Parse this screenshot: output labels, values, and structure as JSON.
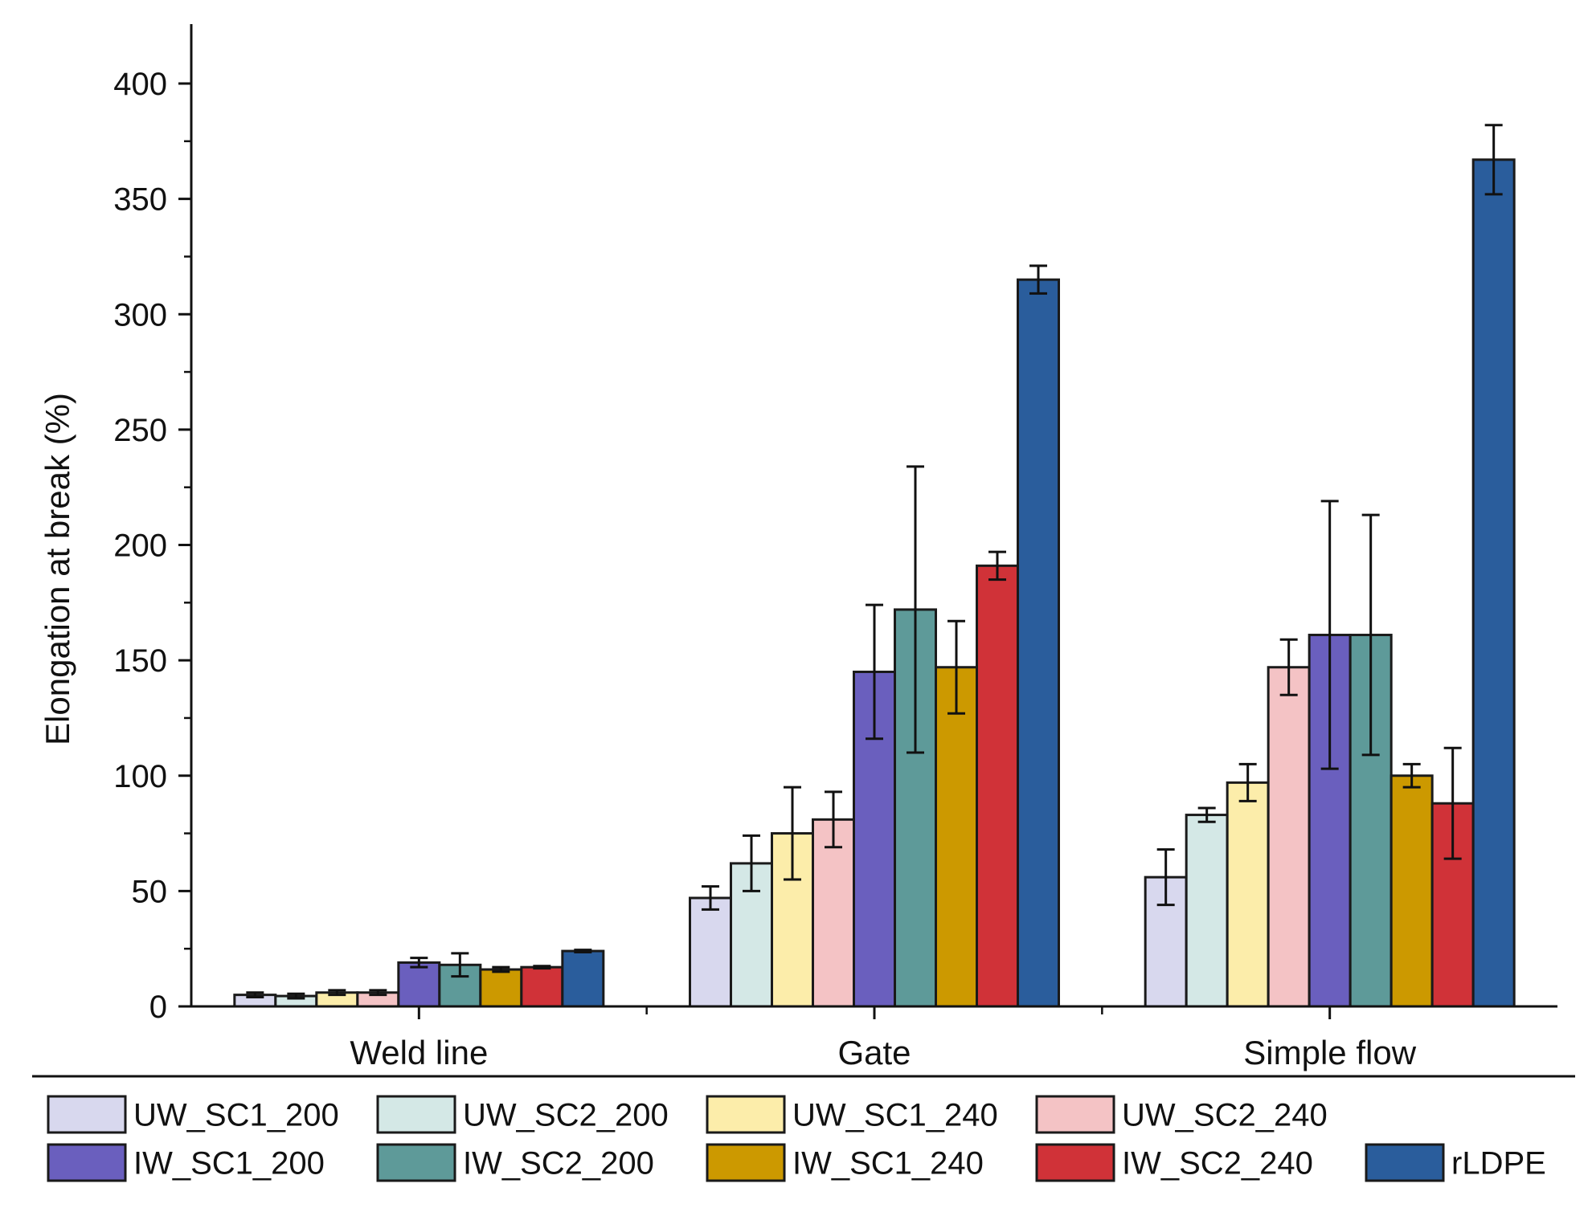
{
  "chart_data": {
    "type": "bar",
    "title": "",
    "xlabel": "",
    "ylabel": "Elongation at break (%)",
    "ylim": [
      0,
      420
    ],
    "yticks": [
      0,
      50,
      100,
      150,
      200,
      250,
      300,
      350,
      400
    ],
    "grid": false,
    "legend_position": "bottom",
    "categories": [
      "Weld line",
      "Gate",
      "Simple flow"
    ],
    "series": [
      {
        "name": "UW_SC1_200",
        "color": "#d8d8ee",
        "values": [
          5,
          47,
          56
        ],
        "errors": [
          1,
          5,
          12
        ]
      },
      {
        "name": "UW_SC2_200",
        "color": "#d4e8e6",
        "values": [
          4.5,
          62,
          83
        ],
        "errors": [
          1,
          12,
          3
        ]
      },
      {
        "name": "UW_SC1_240",
        "color": "#fcedaa",
        "values": [
          6,
          75,
          97
        ],
        "errors": [
          1,
          20,
          8
        ]
      },
      {
        "name": "UW_SC2_240",
        "color": "#f4c3c5",
        "values": [
          6,
          81,
          147
        ],
        "errors": [
          1,
          12,
          12
        ]
      },
      {
        "name": "IW_SC1_200",
        "color": "#6a5fbe",
        "values": [
          19,
          145,
          161
        ],
        "errors": [
          2,
          29,
          58
        ]
      },
      {
        "name": "IW_SC2_200",
        "color": "#5e9a99",
        "values": [
          18,
          172,
          161
        ],
        "errors": [
          5,
          62,
          52
        ]
      },
      {
        "name": "IW_SC1_240",
        "color": "#cc9900",
        "values": [
          16,
          147,
          100
        ],
        "errors": [
          1,
          20,
          5
        ]
      },
      {
        "name": "IW_SC2_240",
        "color": "#d03238",
        "values": [
          17,
          191,
          88
        ],
        "errors": [
          0.5,
          6,
          24
        ]
      },
      {
        "name": "rLDPE",
        "color": "#2a5d9c",
        "values": [
          24,
          315,
          367
        ],
        "errors": [
          0.5,
          6,
          15
        ]
      }
    ]
  }
}
